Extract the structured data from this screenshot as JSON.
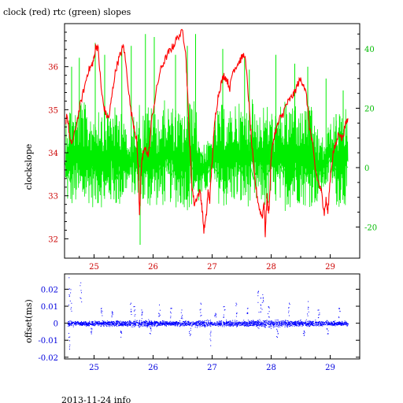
{
  "chart_data": [
    {
      "type": "line",
      "title": "clock (red) rtc (green) slopes",
      "xlabel": "",
      "ylabel": "clockslope",
      "xlim": [
        24.5,
        29.5
      ],
      "ylim": [
        31.55,
        37.0
      ],
      "y2lim": [
        -30.5,
        48.5
      ],
      "x_ticks": [
        "25",
        "26",
        "27",
        "28",
        "29"
      ],
      "y_ticks": [
        "32",
        "33",
        "34",
        "35",
        "36"
      ],
      "y2_ticks": [
        "-20",
        "0",
        "20",
        "40"
      ],
      "grid": false,
      "colors": {
        "clock": "#ff0000",
        "rtc": "#00ee00",
        "axis_left": "#cc0000",
        "axis_right": "#00bb00",
        "frame": "#000000"
      },
      "series": [
        {
          "axis": "left",
          "x": [
            24.52,
            24.54,
            24.56,
            24.6,
            24.65,
            24.72,
            24.78,
            24.85,
            24.9,
            24.95,
            24.98,
            25.0,
            25.03,
            25.07,
            25.12,
            25.16,
            25.2,
            25.25,
            25.3,
            25.35,
            25.4,
            25.45,
            25.5,
            25.56,
            25.62,
            25.68,
            25.72,
            25.75,
            25.77,
            25.8,
            25.83,
            25.88,
            25.92,
            25.98,
            26.05,
            26.12,
            26.18,
            26.25,
            26.3,
            26.35,
            26.42,
            26.5,
            26.55,
            26.58,
            26.62,
            26.66,
            26.7,
            26.75,
            26.8,
            26.83,
            26.86,
            26.9,
            26.93,
            26.96,
            27.0,
            27.05,
            27.1,
            27.15,
            27.2,
            27.25,
            27.3,
            27.35,
            27.4,
            27.45,
            27.5,
            27.55,
            27.6,
            27.65,
            27.7,
            27.75,
            27.8,
            27.85,
            27.88,
            27.9,
            27.93,
            27.95,
            27.97,
            28.0,
            28.05,
            28.1,
            28.15,
            28.2,
            28.25,
            28.3,
            28.35,
            28.4,
            28.45,
            28.5,
            28.55,
            28.6,
            28.65,
            28.7,
            28.75,
            28.8,
            28.85,
            28.88,
            28.9,
            28.93,
            28.96,
            29.0,
            29.05,
            29.1,
            29.15,
            29.2,
            29.25,
            29.3
          ],
          "y": [
            34.6,
            34.9,
            34.7,
            34.2,
            34.3,
            34.8,
            35.2,
            35.6,
            35.9,
            36.0,
            36.1,
            36.2,
            36.5,
            36.4,
            35.5,
            35.1,
            34.9,
            34.8,
            35.3,
            35.8,
            36.1,
            36.3,
            36.5,
            35.8,
            35.0,
            34.6,
            34.3,
            33.6,
            32.6,
            33.6,
            34.0,
            34.1,
            33.9,
            34.8,
            35.4,
            35.9,
            36.1,
            36.3,
            36.4,
            36.5,
            36.7,
            36.8,
            36.4,
            35.5,
            34.2,
            33.2,
            32.8,
            33.0,
            33.1,
            32.7,
            32.2,
            32.5,
            33.1,
            32.9,
            33.8,
            34.8,
            35.3,
            35.6,
            35.8,
            35.7,
            35.5,
            35.9,
            36.0,
            36.1,
            36.2,
            36.3,
            35.6,
            34.6,
            33.7,
            33.1,
            32.7,
            32.5,
            32.9,
            32.1,
            33.0,
            32.6,
            32.8,
            33.9,
            34.4,
            34.6,
            34.8,
            34.9,
            35.1,
            35.2,
            35.3,
            35.4,
            35.6,
            35.7,
            35.6,
            35.3,
            34.6,
            34.2,
            33.6,
            33.3,
            33.1,
            32.8,
            32.6,
            32.9,
            32.6,
            33.4,
            34.0,
            34.2,
            34.5,
            34.3,
            34.6,
            34.8
          ]
        },
        {
          "axis": "right",
          "x": [
            24.5,
            24.6,
            24.7,
            24.8,
            24.9,
            25.0,
            25.1,
            25.2,
            25.3,
            25.4,
            25.5,
            25.55,
            25.6,
            25.7,
            25.75,
            25.8,
            25.9,
            26.0,
            26.1,
            26.2,
            26.3,
            26.4,
            26.5,
            26.6,
            26.7,
            26.8,
            26.9,
            27.0,
            27.1,
            27.2,
            27.3,
            27.4,
            27.5,
            27.6,
            27.7,
            27.8,
            27.9,
            28.0,
            28.1,
            28.2,
            28.3,
            28.4,
            28.5,
            28.6,
            28.7,
            28.8,
            28.9,
            29.0,
            29.1,
            29.2,
            29.3
          ],
          "y": [
            2,
            -5,
            6,
            -3,
            4,
            -2,
            5,
            -6,
            3,
            -4,
            6,
            -2,
            4,
            1,
            -1,
            3,
            0,
            2,
            -1,
            4,
            -3,
            2,
            -4,
            3,
            -2,
            5,
            -3,
            1,
            -2,
            4,
            -1,
            3,
            -2,
            5,
            -4,
            2,
            -3,
            0,
            4,
            -2,
            3,
            -1,
            5,
            -3,
            2,
            1,
            -2,
            3,
            -1,
            2,
            0
          ],
          "band_low": [
            -12,
            -14,
            -13,
            -15,
            -12,
            -14,
            -13,
            -15,
            -12,
            -14,
            -13,
            -8,
            -6,
            -12,
            -14,
            -13,
            -15,
            -12,
            -14,
            -13,
            -12,
            -14,
            -13,
            -15,
            -12,
            -13,
            -8,
            -6,
            -12,
            -14,
            -13,
            -12,
            -14,
            -13,
            -15,
            -12,
            -14,
            -13,
            -12,
            -15,
            -14,
            -13,
            -12,
            -14,
            -13,
            -12,
            -8,
            -5,
            -13,
            -14,
            -12
          ],
          "band_high": [
            18,
            22,
            20,
            24,
            19,
            21,
            23,
            20,
            22,
            19,
            24,
            10,
            8,
            21,
            25,
            18,
            22,
            20,
            19,
            23,
            21,
            20,
            18,
            22,
            24,
            10,
            8,
            12,
            20,
            22,
            19,
            23,
            21,
            20,
            24,
            19,
            22,
            20,
            18,
            23,
            21,
            24,
            19,
            22,
            20,
            12,
            10,
            16,
            18,
            21,
            20
          ],
          "spike_x": [
            24.62,
            24.75,
            25.02,
            25.18,
            25.47,
            25.63,
            25.78,
            25.87,
            26.02,
            26.38,
            26.58,
            26.72,
            27.18,
            27.55,
            27.63,
            28.08,
            28.4,
            28.62,
            28.93,
            29.1,
            29.22
          ],
          "spike_y": [
            34,
            37,
            42,
            38,
            40,
            41,
            -26,
            45,
            44,
            38,
            41,
            45,
            40,
            37,
            33,
            38,
            35,
            34,
            30,
            18,
            26
          ]
        }
      ]
    },
    {
      "type": "scatter",
      "title": "",
      "xlabel": "",
      "ylabel": "offset(ms)",
      "xlim": [
        24.5,
        29.5
      ],
      "ylim": [
        -0.021,
        0.029
      ],
      "x_ticks": [
        "25",
        "26",
        "27",
        "28",
        "29"
      ],
      "y_ticks": [
        "-0.02",
        "-0.01",
        "0",
        "0.01",
        "0.02"
      ],
      "grid": false,
      "colors": {
        "points": "#0000ff",
        "axis": "#0000dd"
      },
      "series": [
        {
          "band_x": [
            24.55,
            24.8,
            25.0,
            25.25,
            25.5,
            25.75,
            26.0,
            26.25,
            26.5,
            26.75,
            27.0,
            27.25,
            27.5,
            27.75,
            28.0,
            28.25,
            28.5,
            28.75,
            29.0,
            29.3
          ],
          "band_halfwidth": [
            0.0022,
            0.0018,
            0.002,
            0.0025,
            0.0022,
            0.0028,
            0.0024,
            0.002,
            0.0023,
            0.0026,
            0.0025,
            0.0022,
            0.0024,
            0.003,
            0.0032,
            0.0026,
            0.0024,
            0.0025,
            0.002,
            0.0018
          ],
          "outlier_x": [
            24.57,
            24.58,
            24.6,
            24.77,
            24.95,
            25.12,
            25.3,
            25.45,
            25.62,
            25.68,
            25.8,
            25.95,
            26.1,
            26.3,
            26.48,
            26.62,
            26.8,
            26.97,
            27.05,
            27.2,
            27.4,
            27.6,
            27.78,
            27.82,
            27.85,
            27.95,
            28.1,
            28.3,
            28.55,
            28.62,
            28.8,
            28.95,
            29.15
          ],
          "outlier_y": [
            0.027,
            -0.015,
            0.02,
            0.024,
            -0.006,
            0.009,
            0.007,
            -0.008,
            0.012,
            0.01,
            0.008,
            -0.006,
            0.011,
            0.009,
            0.008,
            -0.007,
            0.012,
            -0.013,
            0.006,
            0.01,
            0.012,
            0.009,
            0.019,
            0.015,
            0.017,
            0.01,
            -0.008,
            0.012,
            -0.007,
            0.013,
            0.008,
            -0.006,
            0.009
          ]
        }
      ]
    }
  ],
  "footer": {
    "date_label": "2013-11-24 info"
  }
}
